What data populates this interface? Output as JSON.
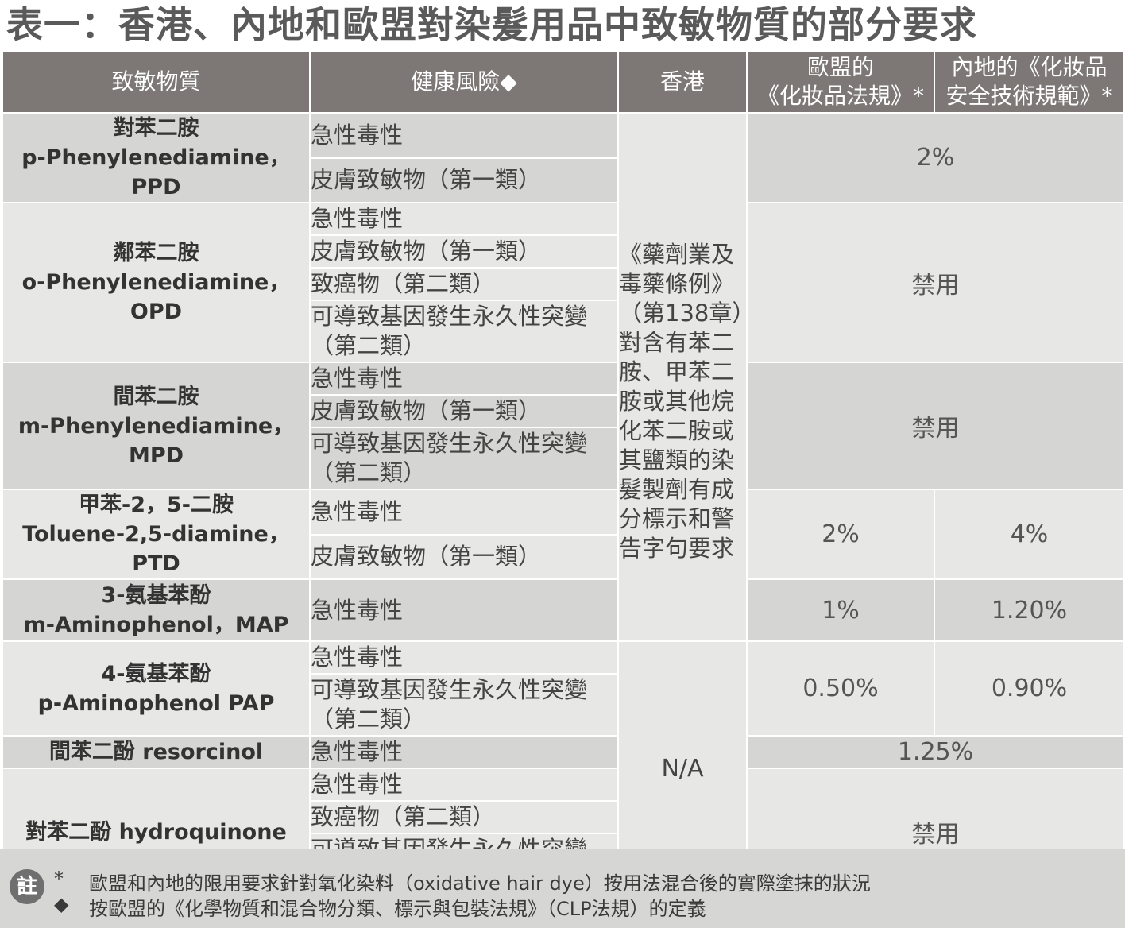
{
  "title": "表一：香港、內地和歐盟對染髮用品中致敏物質的部分要求",
  "headers": {
    "substance": "致敏物質",
    "risk": "健康風險◆",
    "hk": "香港",
    "eu_line1": "歐盟的",
    "eu_line2": "《化妝品法規》*",
    "cn_line1": "內地的《化妝品",
    "cn_line2": "安全技術規範》*"
  },
  "risks": {
    "acute": "急性毒性",
    "skin": "皮膚致敏物（第一類）",
    "carc": "致癌物（第二類）",
    "mut1": "可導致基因發生永久性突變",
    "mut2": "（第二類）"
  },
  "substances": {
    "ppd_cn": "對苯二胺",
    "ppd_en": "p-Phenylenediamine，PPD",
    "opd_cn": "鄰苯二胺",
    "opd_en": "o-Phenylenediamine，OPD",
    "mpd_cn": "間苯二胺",
    "mpd_en": "m-Phenylenediamine，MPD",
    "ptd_cn": "甲苯-2，5-二胺",
    "ptd_en": "Toluene-2,5-diamine，PTD",
    "map_cn": "3-氨基苯酚",
    "map_en": "m-Aminophenol，MAP",
    "pap_cn": "4-氨基苯酚",
    "pap_en": "p-Aminophenol PAP",
    "res": "間苯二酚 resorcinol",
    "hq": "對苯二酚 hydroquinone"
  },
  "hk": {
    "ordinance": "《藥劑業及毒藥條例》（第138章）對含有苯二胺、甲苯二胺或其他烷化苯二胺或其鹽類的染髮製劑有成分標示和警告字句要求",
    "na": "N/A"
  },
  "values": {
    "ppd": "2%",
    "opd": "禁用",
    "mpd": "禁用",
    "ptd_eu": "2%",
    "ptd_cn": "4%",
    "map_eu": "1%",
    "map_cn": "1.20%",
    "pap_eu": "0.50%",
    "pap_cn": "0.90%",
    "res": "1.25%",
    "hq": "禁用"
  },
  "footer": {
    "badge": "註",
    "mark1": "*",
    "note1": "歐盟和內地的限用要求針對氧化染料（oxidative hair dye）按用法混合後的實際塗抹的狀況",
    "mark2": "◆",
    "note2": "按歐盟的《化學物質和混合物分類、標示與包裝法規》（CLP法規）的定義"
  }
}
